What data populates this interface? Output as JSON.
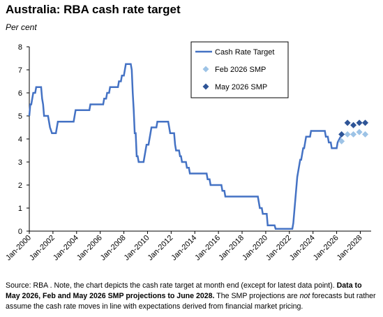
{
  "chart_data": {
    "type": "line",
    "title": "Australia: RBA cash rate target",
    "subtitle": "Per cent",
    "note": {
      "source": "Source: RBA . Note, the chart depicts the cash rate target at month end (except for latest data point).",
      "bold": "Data to May 2026, Feb and May 2026 SMP projections to June 2028.",
      "pre": "The SMP projections are",
      "italic": "not",
      "post": "forecasts but rather assume the cash rate moves in line with expectations derived from financial market pricing."
    },
    "x": [
      "2000-01",
      "2000-02",
      "2000-03",
      "2000-04",
      "2000-05",
      "2000-07",
      "2000-08",
      "2001-01",
      "2001-02",
      "2001-03",
      "2001-04",
      "2001-08",
      "2001-09",
      "2001-10",
      "2001-12",
      "2002-04",
      "2002-05",
      "2002-06",
      "2003-10",
      "2003-11",
      "2003-12",
      "2005-02",
      "2005-03",
      "2006-04",
      "2006-05",
      "2006-07",
      "2006-08",
      "2006-10",
      "2006-11",
      "2007-07",
      "2007-08",
      "2007-10",
      "2007-11",
      "2008-01",
      "2008-02",
      "2008-03",
      "2008-08",
      "2008-09",
      "2008-10",
      "2008-11",
      "2008-12",
      "2009-01",
      "2009-02",
      "2009-03",
      "2009-04",
      "2009-09",
      "2009-10",
      "2009-11",
      "2009-12",
      "2010-02",
      "2010-03",
      "2010-04",
      "2010-05",
      "2010-10",
      "2010-11",
      "2011-10",
      "2011-11",
      "2011-12",
      "2012-04",
      "2012-05",
      "2012-06",
      "2012-09",
      "2012-10",
      "2012-11",
      "2012-12",
      "2013-04",
      "2013-05",
      "2013-07",
      "2013-08",
      "2015-01",
      "2015-02",
      "2015-04",
      "2015-05",
      "2016-04",
      "2016-05",
      "2016-07",
      "2016-08",
      "2019-05",
      "2019-06",
      "2019-07",
      "2019-09",
      "2019-10",
      "2020-02",
      "2020-03",
      "2020-10",
      "2020-11",
      "2022-04",
      "2022-05",
      "2022-06",
      "2022-07",
      "2022-08",
      "2022-09",
      "2022-10",
      "2022-11",
      "2022-12",
      "2023-01",
      "2023-02",
      "2023-03",
      "2023-04",
      "2023-05",
      "2023-06",
      "2023-10",
      "2023-11",
      "2025-01",
      "2025-02",
      "2025-04",
      "2025-05",
      "2025-07",
      "2025-08",
      "2026-01",
      "2026-02",
      "2026-05"
    ],
    "series": [
      {
        "name": "Cash Rate Target",
        "color": "#4472c4",
        "values": [
          5.0,
          5.5,
          5.5,
          5.75,
          6.0,
          6.0,
          6.25,
          6.25,
          5.75,
          5.5,
          5.0,
          5.0,
          4.75,
          4.5,
          4.25,
          4.25,
          4.5,
          4.75,
          4.75,
          5.0,
          5.25,
          5.25,
          5.5,
          5.5,
          5.75,
          5.75,
          6.0,
          6.0,
          6.25,
          6.25,
          6.5,
          6.5,
          6.75,
          6.75,
          7.0,
          7.25,
          7.25,
          7.0,
          6.0,
          5.25,
          4.25,
          4.25,
          3.25,
          3.25,
          3.0,
          3.0,
          3.25,
          3.5,
          3.75,
          3.75,
          4.0,
          4.25,
          4.5,
          4.5,
          4.75,
          4.75,
          4.5,
          4.25,
          4.25,
          3.75,
          3.5,
          3.5,
          3.25,
          3.25,
          3.0,
          3.0,
          2.75,
          2.75,
          2.5,
          2.5,
          2.25,
          2.25,
          2.0,
          2.0,
          1.75,
          1.75,
          1.5,
          1.5,
          1.25,
          1.0,
          1.0,
          0.75,
          0.75,
          0.25,
          0.25,
          0.1,
          0.1,
          0.35,
          0.85,
          1.35,
          1.85,
          2.35,
          2.6,
          2.85,
          3.1,
          3.1,
          3.35,
          3.6,
          3.6,
          3.85,
          4.1,
          4.1,
          4.35,
          4.35,
          4.1,
          4.1,
          3.85,
          3.85,
          3.6,
          3.6,
          3.85,
          4.1
        ]
      },
      {
        "name": "Feb 2026 SMP",
        "type": "scatter",
        "color": "#9dc3e6",
        "x": [
          "2026-06",
          "2026-12",
          "2027-06",
          "2027-12",
          "2028-06"
        ],
        "values": [
          3.9,
          4.2,
          4.2,
          4.3,
          4.2
        ]
      },
      {
        "name": "May 2026 SMP",
        "type": "scatter",
        "color": "#2f5597",
        "x": [
          "2026-06",
          "2026-12",
          "2027-06",
          "2027-12",
          "2028-06"
        ],
        "values": [
          4.2,
          4.7,
          4.6,
          4.7,
          4.7
        ]
      }
    ],
    "xlim": [
      "2000-01",
      "2028-12"
    ],
    "xticks": [
      {
        "value": "2000-01",
        "label": "Jan-2000"
      },
      {
        "value": "2002-01",
        "label": "Jan-2002"
      },
      {
        "value": "2004-01",
        "label": "Jan-2004"
      },
      {
        "value": "2006-01",
        "label": "Jan-2006"
      },
      {
        "value": "2008-01",
        "label": "Jan-2008"
      },
      {
        "value": "2010-01",
        "label": "Jan-2010"
      },
      {
        "value": "2012-01",
        "label": "Jan-2012"
      },
      {
        "value": "2014-01",
        "label": "Jan-2014"
      },
      {
        "value": "2016-01",
        "label": "Jan-2016"
      },
      {
        "value": "2018-01",
        "label": "Jan-2018"
      },
      {
        "value": "2020-01",
        "label": "Jan-2020"
      },
      {
        "value": "2022-01",
        "label": "Jan-2022"
      },
      {
        "value": "2024-01",
        "label": "Jan-2024"
      },
      {
        "value": "2026-01",
        "label": "Jan-2026"
      },
      {
        "value": "2028-01",
        "label": "Jan-2028"
      }
    ],
    "ylim": [
      0,
      8
    ],
    "yticks": [
      0,
      1,
      2,
      3,
      4,
      5,
      6,
      7,
      8
    ],
    "grid": false,
    "legend": "top-right"
  }
}
